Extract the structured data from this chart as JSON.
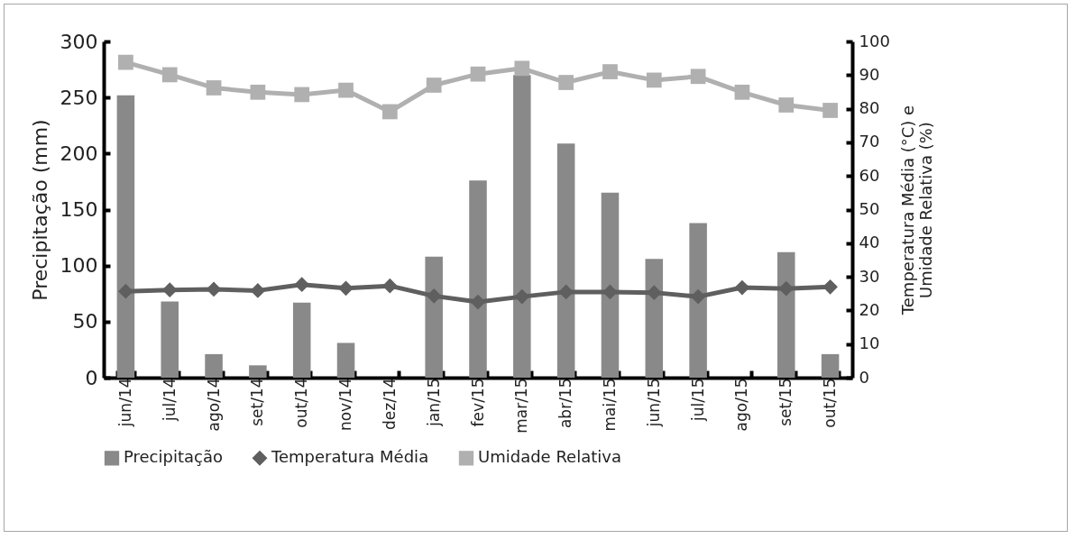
{
  "chart_data": {
    "type": "bar",
    "categories": [
      "jun/14",
      "jul/14",
      "ago/14",
      "set/14",
      "out/14",
      "nov/14",
      "dez/14",
      "jan/15",
      "fev/15",
      "mar/15",
      "abr/15",
      "mai/15",
      "jun/15",
      "jul/15",
      "ago/15",
      "set/15",
      "out/15"
    ],
    "ylabel": "Precipitação (mm)",
    "y2label": "Temperatura Média (°C) e Umidade Relativa (%)",
    "ylim": [
      0,
      300
    ],
    "yticks": [
      0,
      50,
      100,
      150,
      200,
      250,
      300
    ],
    "y2lim": [
      0,
      100
    ],
    "y2ticks": [
      0,
      10,
      20,
      30,
      40,
      50,
      60,
      70,
      80,
      90,
      100
    ],
    "legend": "bottom",
    "series": [
      {
        "name": "Precipitação",
        "color": "#898989",
        "values": [
          252,
          68,
          21,
          11,
          67,
          31,
          0,
          108,
          176,
          270,
          209,
          165,
          106,
          138,
          0,
          112,
          21
        ]
      },
      {
        "name": "Temperatura Média",
        "type": "line",
        "axis": "y2",
        "marker": "diamond",
        "color": "#5f5f5f",
        "values": [
          25.7,
          26.1,
          26.3,
          25.9,
          27.7,
          26.6,
          27.3,
          24.3,
          22.5,
          24.1,
          25.5,
          25.5,
          25.3,
          24.1,
          26.8,
          26.5,
          27.0
        ]
      },
      {
        "name": "Umidade Relativa",
        "type": "line",
        "axis": "y2",
        "marker": "square",
        "color": "#b0b0b0",
        "values": [
          93.8,
          90.1,
          86.2,
          84.9,
          84.2,
          85.5,
          79.1,
          87.0,
          90.3,
          92.0,
          87.8,
          91.0,
          88.5,
          89.6,
          84.9,
          81.1,
          79.5
        ]
      }
    ]
  }
}
